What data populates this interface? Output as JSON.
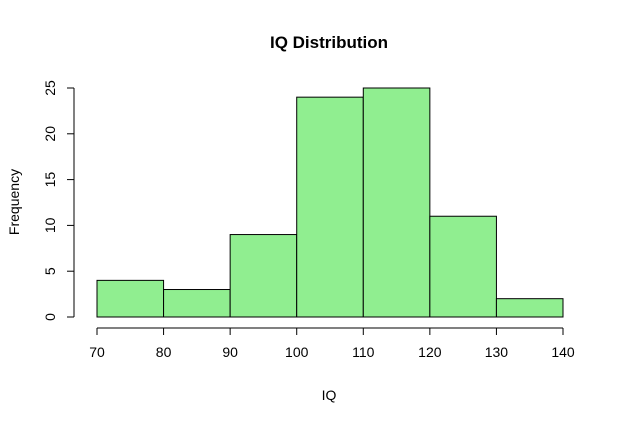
{
  "chart_data": {
    "type": "bar",
    "title": "IQ Distribution",
    "xlabel": "IQ",
    "ylabel": "Frequency",
    "bins": [
      {
        "start": 70,
        "end": 80,
        "count": 4
      },
      {
        "start": 80,
        "end": 90,
        "count": 3
      },
      {
        "start": 90,
        "end": 100,
        "count": 9
      },
      {
        "start": 100,
        "end": 110,
        "count": 24
      },
      {
        "start": 110,
        "end": 120,
        "count": 25
      },
      {
        "start": 120,
        "end": 130,
        "count": 11
      },
      {
        "start": 130,
        "end": 140,
        "count": 2
      }
    ],
    "xlim": [
      70,
      140
    ],
    "ylim": [
      0,
      25
    ],
    "xticks": [
      "70",
      "80",
      "90",
      "100",
      "110",
      "120",
      "130",
      "140"
    ],
    "yticks": [
      "0",
      "5",
      "10",
      "15",
      "20",
      "25"
    ],
    "bar_color": "#90EE90",
    "bar_edge_color": "#000000",
    "grid": false,
    "legend": "none"
  }
}
